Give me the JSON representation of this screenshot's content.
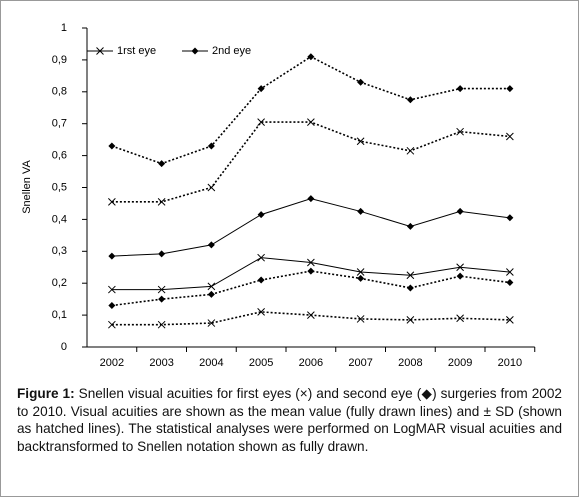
{
  "chart_data": {
    "type": "line",
    "y_label": "Snellen VA",
    "categories": [
      "2002",
      "2003",
      "2004",
      "2005",
      "2006",
      "2007",
      "2008",
      "2009",
      "2010"
    ],
    "ylim": [
      0,
      1
    ],
    "yticks": [
      0,
      {
        "value": 0.1,
        "label": "0,1"
      },
      {
        "value": 0.2,
        "label": "0,2"
      },
      {
        "value": 0.3,
        "label": "0,3"
      },
      {
        "value": 0.4,
        "label": "0,4"
      },
      {
        "value": 0.5,
        "label": "0,5"
      },
      {
        "value": 0.6,
        "label": "0,6"
      },
      {
        "value": 0.7,
        "label": "0,7"
      },
      {
        "value": 0.8,
        "label": "0,8"
      },
      {
        "value": 0.9,
        "label": "0,9"
      },
      1
    ],
    "legend": "top-left",
    "series": [
      {
        "name": "1rst eye",
        "color": "#000000",
        "marker": "x",
        "dashed": false,
        "values": [
          0.18,
          0.18,
          0.19,
          0.28,
          0.265,
          0.235,
          0.225,
          0.25,
          0.235
        ]
      },
      {
        "color": "#000000",
        "marker": "x",
        "dashed": true,
        "values": [
          0.455,
          0.455,
          0.5,
          0.705,
          0.705,
          0.645,
          0.615,
          0.675,
          0.66
        ]
      },
      {
        "color": "#000000",
        "marker": "x",
        "dashed": true,
        "values": [
          0.07,
          0.07,
          0.075,
          0.11,
          0.1,
          0.088,
          0.085,
          0.09,
          0.085
        ]
      },
      {
        "name": "2nd eye",
        "color": "#000000",
        "marker": "diamond",
        "dashed": false,
        "values": [
          0.285,
          0.292,
          0.32,
          0.415,
          0.465,
          0.425,
          0.378,
          0.425,
          0.405
        ]
      },
      {
        "color": "#000000",
        "marker": "diamond",
        "dashed": true,
        "values": [
          0.63,
          0.575,
          0.63,
          0.81,
          0.91,
          0.83,
          0.775,
          0.81,
          0.81
        ]
      },
      {
        "color": "#000000",
        "marker": "diamond",
        "dashed": true,
        "values": [
          0.13,
          0.15,
          0.165,
          0.21,
          0.238,
          0.215,
          0.185,
          0.222,
          0.202
        ]
      }
    ]
  },
  "caption": {
    "label": "Figure 1:",
    "text": "Snellen visual acuities for first eyes (×) and second eye (◆) surgeries from 2002 to 2010. Visual acuities are shown as the mean value (fully drawn lines) and ± SD (shown as hatched lines). The statistical analyses were performed on LogMAR visual acuities and backtransformed to Snellen notation shown as fully drawn."
  }
}
